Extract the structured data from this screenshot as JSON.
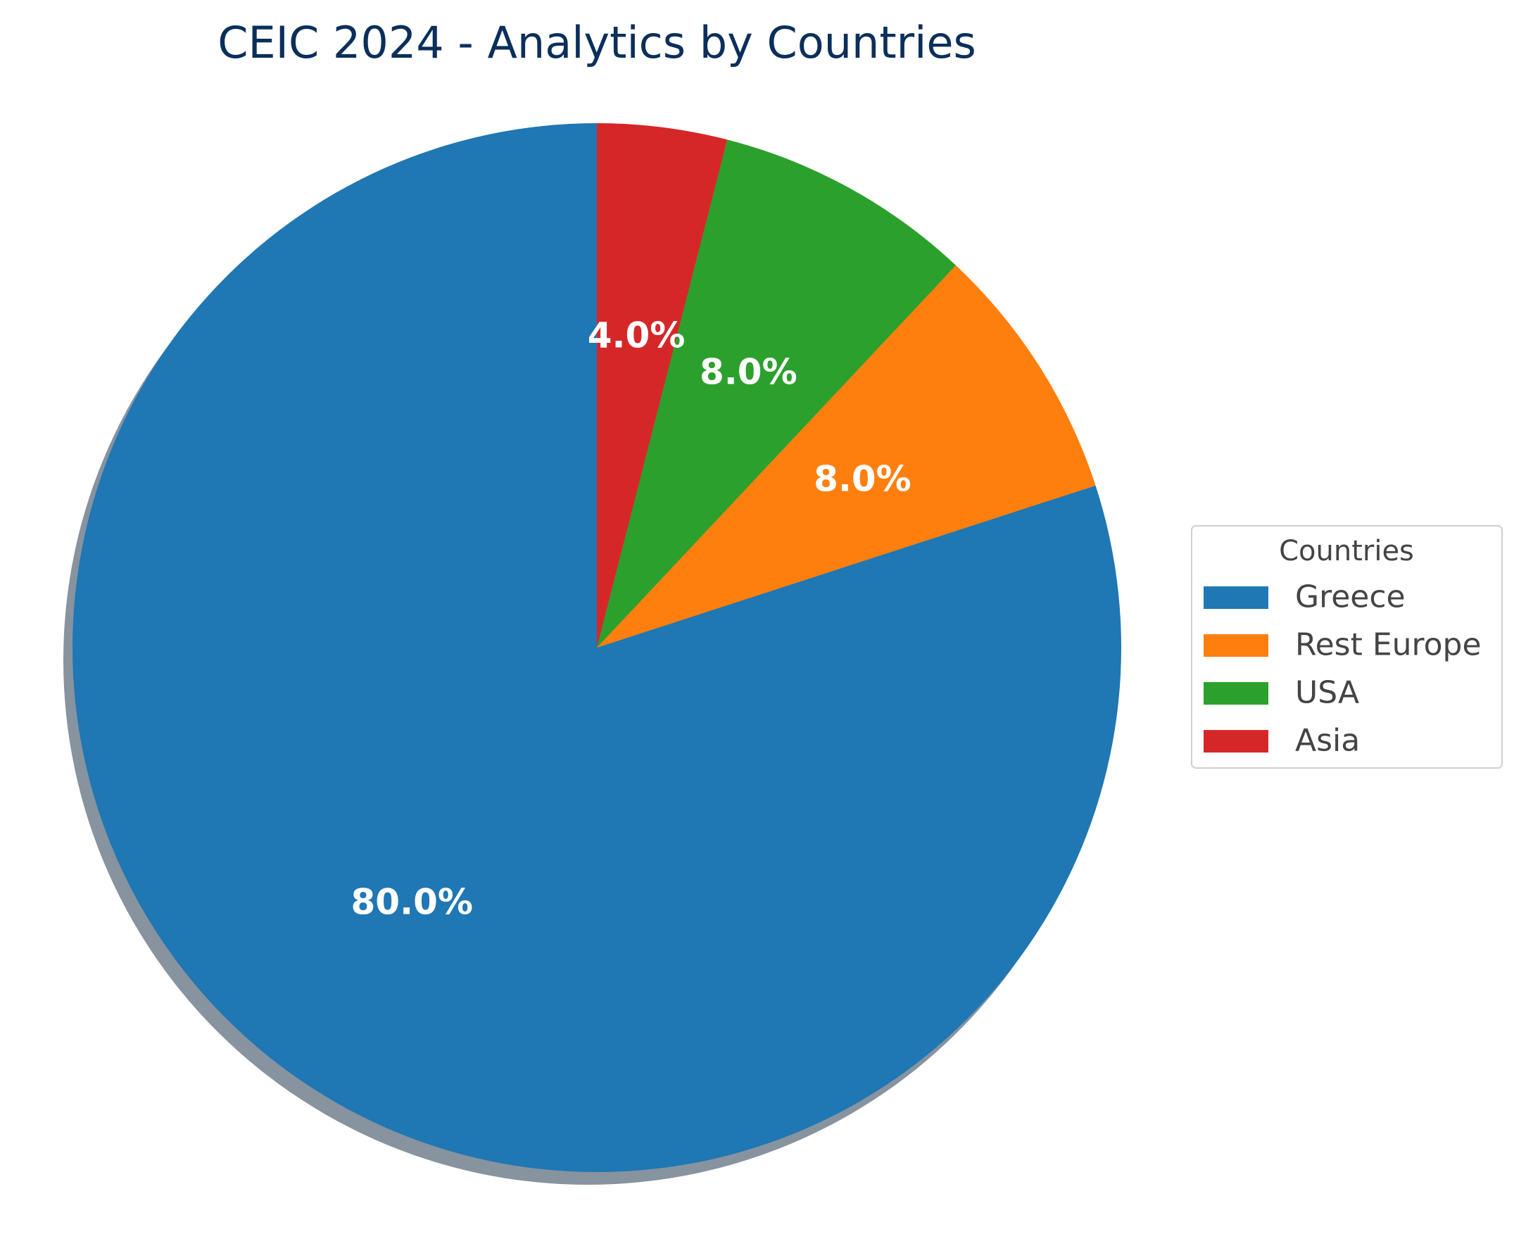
{
  "chart_data": {
    "type": "pie",
    "title": "CEIC 2024 - Analytics by Countries",
    "categories": [
      "Greece",
      "Rest Europe",
      "USA",
      "Asia"
    ],
    "values": [
      80.0,
      8.0,
      8.0,
      4.0
    ],
    "labels": [
      "80.0%",
      "8.0%",
      "8.0%",
      "4.0%"
    ],
    "colors": [
      "#1f77b4",
      "#ff7f0e",
      "#2ca02c",
      "#d62728"
    ],
    "start_angle_deg": 90,
    "direction": "counterclockwise",
    "shadow": true,
    "legend": {
      "title": "Countries",
      "placement": "center-right"
    }
  }
}
